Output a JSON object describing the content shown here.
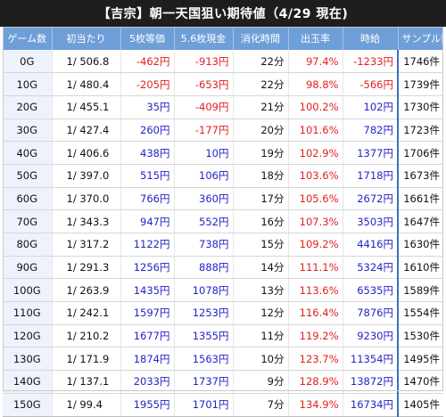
{
  "title": "【吉宗】朝一天国狙い期待値（4/29 現在)",
  "colors": {
    "header_bg": "#6f9fd8",
    "title_bg": "#1e1e1e",
    "negative": "#e0201e",
    "positive": "#2323c8",
    "game_col_bg": "#eef3fb"
  },
  "headers": [
    "ゲーム数",
    "初当たり",
    "5枚等価",
    "5.6枚現金",
    "消化時間",
    "出玉率",
    "時給",
    "サンプル数"
  ],
  "rows": [
    {
      "game": "0G",
      "rate": "1/ 506.8",
      "eq5": "-462円",
      "cash56": "-913円",
      "time": "22分",
      "payout": "97.4%",
      "hourly": "-1233円",
      "samples": "1746件",
      "eq5_neg": true,
      "cash56_neg": true,
      "payout_low": true,
      "hourly_neg": true
    },
    {
      "game": "10G",
      "rate": "1/ 480.4",
      "eq5": "-205円",
      "cash56": "-653円",
      "time": "22分",
      "payout": "98.8%",
      "hourly": "-566円",
      "samples": "1739件",
      "eq5_neg": true,
      "cash56_neg": true,
      "payout_low": true,
      "hourly_neg": true
    },
    {
      "game": "20G",
      "rate": "1/ 455.1",
      "eq5": "35円",
      "cash56": "-409円",
      "time": "21分",
      "payout": "100.2%",
      "hourly": "102円",
      "samples": "1730件",
      "eq5_neg": false,
      "cash56_neg": true,
      "payout_low": false,
      "hourly_neg": false
    },
    {
      "game": "30G",
      "rate": "1/ 427.4",
      "eq5": "260円",
      "cash56": "-177円",
      "time": "20分",
      "payout": "101.6%",
      "hourly": "782円",
      "samples": "1723件",
      "eq5_neg": false,
      "cash56_neg": true,
      "payout_low": false,
      "hourly_neg": false
    },
    {
      "game": "40G",
      "rate": "1/ 406.6",
      "eq5": "438円",
      "cash56": "10円",
      "time": "19分",
      "payout": "102.9%",
      "hourly": "1377円",
      "samples": "1706件",
      "eq5_neg": false,
      "cash56_neg": false,
      "payout_low": false,
      "hourly_neg": false
    },
    {
      "game": "50G",
      "rate": "1/ 397.0",
      "eq5": "515円",
      "cash56": "106円",
      "time": "18分",
      "payout": "103.6%",
      "hourly": "1718円",
      "samples": "1673件",
      "eq5_neg": false,
      "cash56_neg": false,
      "payout_low": false,
      "hourly_neg": false
    },
    {
      "game": "60G",
      "rate": "1/ 370.0",
      "eq5": "766円",
      "cash56": "360円",
      "time": "17分",
      "payout": "105.6%",
      "hourly": "2672円",
      "samples": "1661件",
      "eq5_neg": false,
      "cash56_neg": false,
      "payout_low": false,
      "hourly_neg": false
    },
    {
      "game": "70G",
      "rate": "1/ 343.3",
      "eq5": "947円",
      "cash56": "552円",
      "time": "16分",
      "payout": "107.3%",
      "hourly": "3503円",
      "samples": "1647件",
      "eq5_neg": false,
      "cash56_neg": false,
      "payout_low": false,
      "hourly_neg": false
    },
    {
      "game": "80G",
      "rate": "1/ 317.2",
      "eq5": "1122円",
      "cash56": "738円",
      "time": "15分",
      "payout": "109.2%",
      "hourly": "4416円",
      "samples": "1630件",
      "eq5_neg": false,
      "cash56_neg": false,
      "payout_low": false,
      "hourly_neg": false
    },
    {
      "game": "90G",
      "rate": "1/ 291.3",
      "eq5": "1256円",
      "cash56": "888円",
      "time": "14分",
      "payout": "111.1%",
      "hourly": "5324円",
      "samples": "1610件",
      "eq5_neg": false,
      "cash56_neg": false,
      "payout_low": false,
      "hourly_neg": false
    },
    {
      "game": "100G",
      "rate": "1/ 263.9",
      "eq5": "1435円",
      "cash56": "1078円",
      "time": "13分",
      "payout": "113.6%",
      "hourly": "6535円",
      "samples": "1589件",
      "eq5_neg": false,
      "cash56_neg": false,
      "payout_low": false,
      "hourly_neg": false
    },
    {
      "game": "110G",
      "rate": "1/ 242.1",
      "eq5": "1597円",
      "cash56": "1253円",
      "time": "12分",
      "payout": "116.4%",
      "hourly": "7876円",
      "samples": "1554件",
      "eq5_neg": false,
      "cash56_neg": false,
      "payout_low": false,
      "hourly_neg": false
    },
    {
      "game": "120G",
      "rate": "1/ 210.2",
      "eq5": "1677円",
      "cash56": "1355円",
      "time": "11分",
      "payout": "119.2%",
      "hourly": "9230円",
      "samples": "1530件",
      "eq5_neg": false,
      "cash56_neg": false,
      "payout_low": false,
      "hourly_neg": false
    },
    {
      "game": "130G",
      "rate": "1/ 171.9",
      "eq5": "1874円",
      "cash56": "1563円",
      "time": "10分",
      "payout": "123.7%",
      "hourly": "11354円",
      "samples": "1495件",
      "eq5_neg": false,
      "cash56_neg": false,
      "payout_low": false,
      "hourly_neg": false
    },
    {
      "game": "140G",
      "rate": "1/ 137.1",
      "eq5": "2033円",
      "cash56": "1737円",
      "time": "9分",
      "payout": "128.9%",
      "hourly": "13872円",
      "samples": "1470件",
      "eq5_neg": false,
      "cash56_neg": false,
      "payout_low": false,
      "hourly_neg": false
    },
    {
      "game": "150G",
      "rate": "1/ 99.4",
      "eq5": "1955円",
      "cash56": "1701円",
      "time": "7分",
      "payout": "134.9%",
      "hourly": "16734円",
      "samples": "1405件",
      "eq5_neg": false,
      "cash56_neg": false,
      "payout_low": false,
      "hourly_neg": false
    }
  ]
}
